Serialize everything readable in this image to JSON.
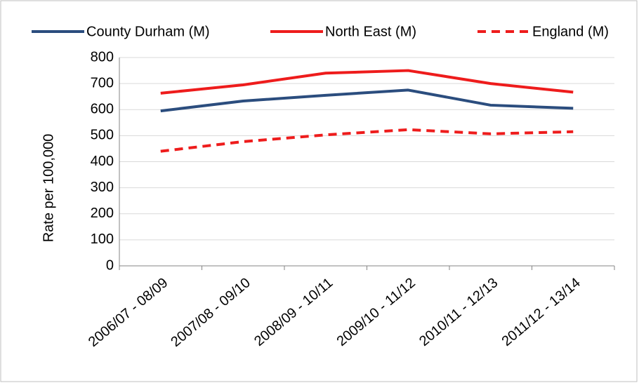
{
  "chart_data": {
    "type": "line",
    "y_label": "Rate per 100,000",
    "categories": [
      "2006/07 - 08/09",
      "2007/08 - 09/10",
      "2008/09 - 10/11",
      "2009/10 - 11/12",
      "2010/11 - 12/13",
      "2011/12 - 13/14"
    ],
    "series": [
      {
        "name": "County Durham (M)",
        "color": "#2b4d7e",
        "dashed": false,
        "values": [
          595,
          633,
          655,
          675,
          617,
          605
        ]
      },
      {
        "name": "North East (M)",
        "color": "#ee1c1c",
        "dashed": false,
        "values": [
          663,
          695,
          740,
          750,
          700,
          667
        ]
      },
      {
        "name": "England (M)",
        "color": "#ee1c1c",
        "dashed": true,
        "values": [
          440,
          477,
          503,
          523,
          507,
          515
        ]
      }
    ],
    "ylim": [
      0,
      800
    ],
    "yticks": [
      0,
      100,
      200,
      300,
      400,
      500,
      600,
      700,
      800
    ],
    "grid": true,
    "legend": "top"
  }
}
